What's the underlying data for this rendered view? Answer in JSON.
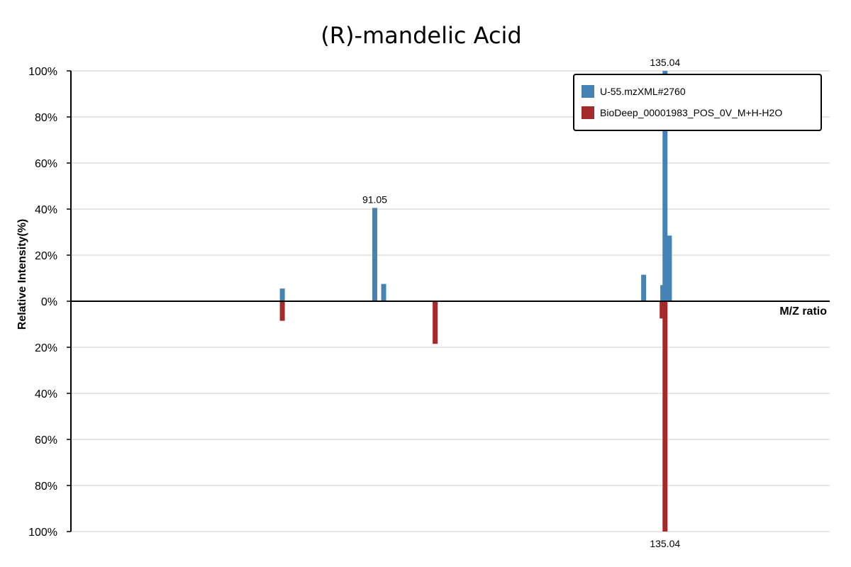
{
  "chart_data": {
    "type": "bar",
    "title": "(R)-mandelic Acid",
    "xlabel": "M/Z ratio",
    "ylabel": "Relative Intensity(%)",
    "grid": true,
    "legend_position": "top-right",
    "y_ticks_top": [
      "100%",
      "80%",
      "60%",
      "40%",
      "20%",
      "0%"
    ],
    "y_ticks_bottom": [
      "20%",
      "40%",
      "60%",
      "80%",
      "100%"
    ],
    "ylim_top": [
      0,
      100
    ],
    "ylim_bottom": [
      0,
      100
    ],
    "xlim": [
      45,
      160
    ],
    "series": [
      {
        "name": "U-55.mzXML#2760",
        "color": "#4682b4",
        "direction": "up",
        "points": [
          {
            "mz": 77.04,
            "intensity": 5.5
          },
          {
            "mz": 91.05,
            "intensity": 40.5
          },
          {
            "mz": 92.4,
            "intensity": 7.5
          },
          {
            "mz": 131.8,
            "intensity": 11.5
          },
          {
            "mz": 134.7,
            "intensity": 7.0
          },
          {
            "mz": 135.04,
            "intensity": 100
          },
          {
            "mz": 135.7,
            "intensity": 28.5
          }
        ]
      },
      {
        "name": "BioDeep_00001983_POS_0V_M+H-H2O",
        "color": "#a52a2a",
        "direction": "down",
        "points": [
          {
            "mz": 77.04,
            "intensity": 8.5
          },
          {
            "mz": 100.2,
            "intensity": 18.5
          },
          {
            "mz": 134.6,
            "intensity": 7.5
          },
          {
            "mz": 135.04,
            "intensity": 100
          }
        ]
      }
    ],
    "peak_labels_top": [
      {
        "mz": 135.04,
        "intensity": 100,
        "text": "135.04"
      },
      {
        "mz": 91.05,
        "intensity": 40.5,
        "text": "91.05"
      }
    ],
    "peak_labels_bottom": [
      {
        "mz": 135.04,
        "intensity": 100,
        "text": "135.04"
      }
    ]
  }
}
